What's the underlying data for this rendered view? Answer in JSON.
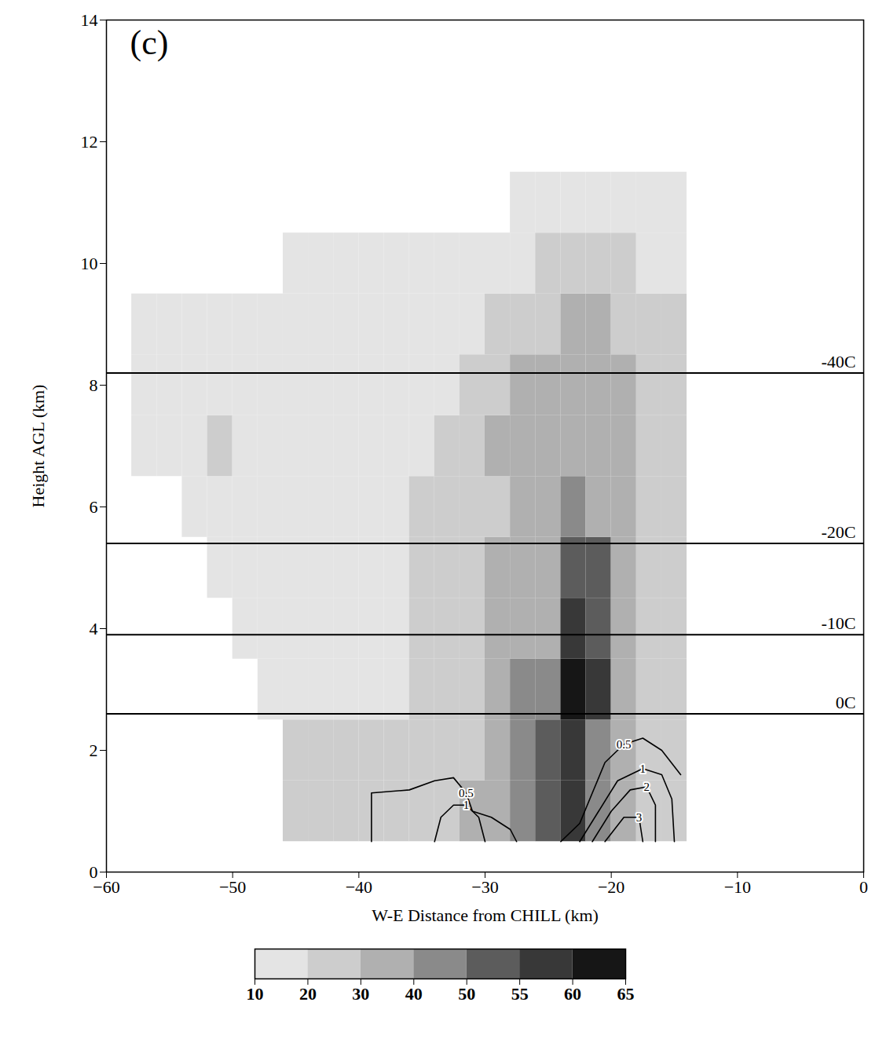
{
  "chart_data": {
    "type": "heatmap",
    "panel_label": "(c)",
    "x_label": "W-E Distance from CHILL (km)",
    "y_label": "Height AGL (km)",
    "xlim": [
      -60,
      0
    ],
    "ylim": [
      0,
      14
    ],
    "xticks": [
      -60,
      -50,
      -40,
      -30,
      -20,
      -10,
      0
    ],
    "yticks": [
      0,
      2,
      4,
      6,
      8,
      10,
      12,
      14
    ],
    "cells": {
      "x": [
        -57,
        -55,
        -53,
        -51,
        -49,
        -47,
        -45,
        -43,
        -41,
        -39,
        -37,
        -35,
        -33,
        -31,
        -29,
        -27,
        -25,
        -23,
        -21,
        -19,
        -17,
        -15
      ],
      "y": [
        1,
        2,
        3,
        4,
        5,
        6,
        7,
        8,
        9,
        10,
        11
      ],
      "values": [
        [
          null,
          null,
          null,
          null,
          null,
          null,
          20,
          20,
          20,
          25,
          25,
          25,
          25,
          30,
          30,
          45,
          50,
          55,
          45,
          30,
          25,
          25
        ],
        [
          null,
          null,
          null,
          null,
          null,
          null,
          20,
          20,
          20,
          20,
          20,
          25,
          25,
          25,
          35,
          45,
          50,
          55,
          45,
          35,
          25,
          25
        ],
        [
          null,
          null,
          null,
          null,
          null,
          15,
          15,
          15,
          15,
          15,
          15,
          20,
          20,
          20,
          30,
          40,
          45,
          60,
          55,
          30,
          25,
          25
        ],
        [
          null,
          null,
          null,
          null,
          15,
          15,
          15,
          15,
          15,
          15,
          15,
          20,
          20,
          20,
          30,
          35,
          35,
          55,
          50,
          30,
          25,
          25
        ],
        [
          null,
          null,
          null,
          15,
          15,
          15,
          15,
          15,
          15,
          15,
          15,
          20,
          20,
          20,
          30,
          35,
          35,
          50,
          50,
          30,
          25,
          25
        ],
        [
          null,
          null,
          15,
          15,
          15,
          15,
          15,
          15,
          15,
          15,
          15,
          20,
          20,
          25,
          25,
          35,
          35,
          40,
          35,
          30,
          25,
          25
        ],
        [
          15,
          15,
          15,
          20,
          15,
          15,
          15,
          15,
          15,
          15,
          15,
          15,
          20,
          20,
          30,
          35,
          35,
          35,
          35,
          30,
          25,
          25
        ],
        [
          15,
          15,
          15,
          15,
          15,
          15,
          15,
          15,
          15,
          15,
          15,
          15,
          15,
          20,
          20,
          30,
          30,
          35,
          30,
          30,
          20,
          20
        ],
        [
          15,
          15,
          15,
          15,
          15,
          15,
          15,
          15,
          15,
          15,
          15,
          15,
          15,
          15,
          20,
          25,
          25,
          30,
          30,
          25,
          20,
          20
        ],
        [
          null,
          null,
          null,
          null,
          null,
          null,
          15,
          15,
          15,
          15,
          15,
          15,
          15,
          15,
          15,
          15,
          20,
          20,
          20,
          20,
          15,
          15
        ],
        [
          null,
          null,
          null,
          null,
          null,
          null,
          null,
          null,
          null,
          null,
          null,
          null,
          null,
          null,
          null,
          15,
          15,
          15,
          15,
          15,
          15,
          15
        ]
      ]
    },
    "colorbar": {
      "ticks": [
        10,
        20,
        30,
        40,
        50,
        55,
        60,
        65
      ],
      "colors": [
        "#e4e4e4",
        "#cdcdcd",
        "#b0b0b0",
        "#8a8a8a",
        "#5c5c5c",
        "#383838",
        "#161616"
      ]
    },
    "isotherms": [
      {
        "label": "-40C",
        "height": 8.2
      },
      {
        "label": "-20C",
        "height": 5.4
      },
      {
        "label": "-10C",
        "height": 3.9
      },
      {
        "label": "0C",
        "height": 2.6
      }
    ],
    "contours": [
      {
        "level": 0.5,
        "points": [
          [
            -39,
            0.5
          ],
          [
            -39,
            1.3
          ],
          [
            -36,
            1.35
          ],
          [
            -34,
            1.5
          ],
          [
            -32.5,
            1.55
          ],
          [
            -31.5,
            1.3
          ],
          [
            -31,
            1.0
          ],
          [
            -29.5,
            0.9
          ],
          [
            -28,
            0.7
          ],
          [
            -27.5,
            0.5
          ]
        ]
      },
      {
        "level": 1,
        "points": [
          [
            -34,
            0.5
          ],
          [
            -33.5,
            0.9
          ],
          [
            -32.5,
            1.1
          ],
          [
            -31.5,
            1.1
          ],
          [
            -30.5,
            0.9
          ],
          [
            -30,
            0.5
          ]
        ]
      },
      {
        "level": 0.5,
        "points": [
          [
            -24,
            0.5
          ],
          [
            -22.5,
            0.8
          ],
          [
            -21.5,
            1.3
          ],
          [
            -20.5,
            1.8
          ],
          [
            -19,
            2.1
          ],
          [
            -17.5,
            2.2
          ],
          [
            -16,
            2.0
          ],
          [
            -14.5,
            1.6
          ]
        ]
      },
      {
        "level": 1,
        "points": [
          [
            -22.5,
            0.5
          ],
          [
            -21,
            1.0
          ],
          [
            -19.5,
            1.5
          ],
          [
            -17.5,
            1.7
          ],
          [
            -16,
            1.6
          ],
          [
            -15.2,
            1.2
          ],
          [
            -15,
            0.5
          ]
        ]
      },
      {
        "level": 2,
        "points": [
          [
            -21.5,
            0.5
          ],
          [
            -20,
            1.0
          ],
          [
            -18.5,
            1.35
          ],
          [
            -17.2,
            1.4
          ],
          [
            -16.5,
            1.1
          ],
          [
            -16.5,
            0.5
          ]
        ]
      },
      {
        "level": 3,
        "points": [
          [
            -20.5,
            0.5
          ],
          [
            -19,
            0.9
          ],
          [
            -17.8,
            0.9
          ],
          [
            -17.5,
            0.5
          ]
        ]
      }
    ]
  }
}
